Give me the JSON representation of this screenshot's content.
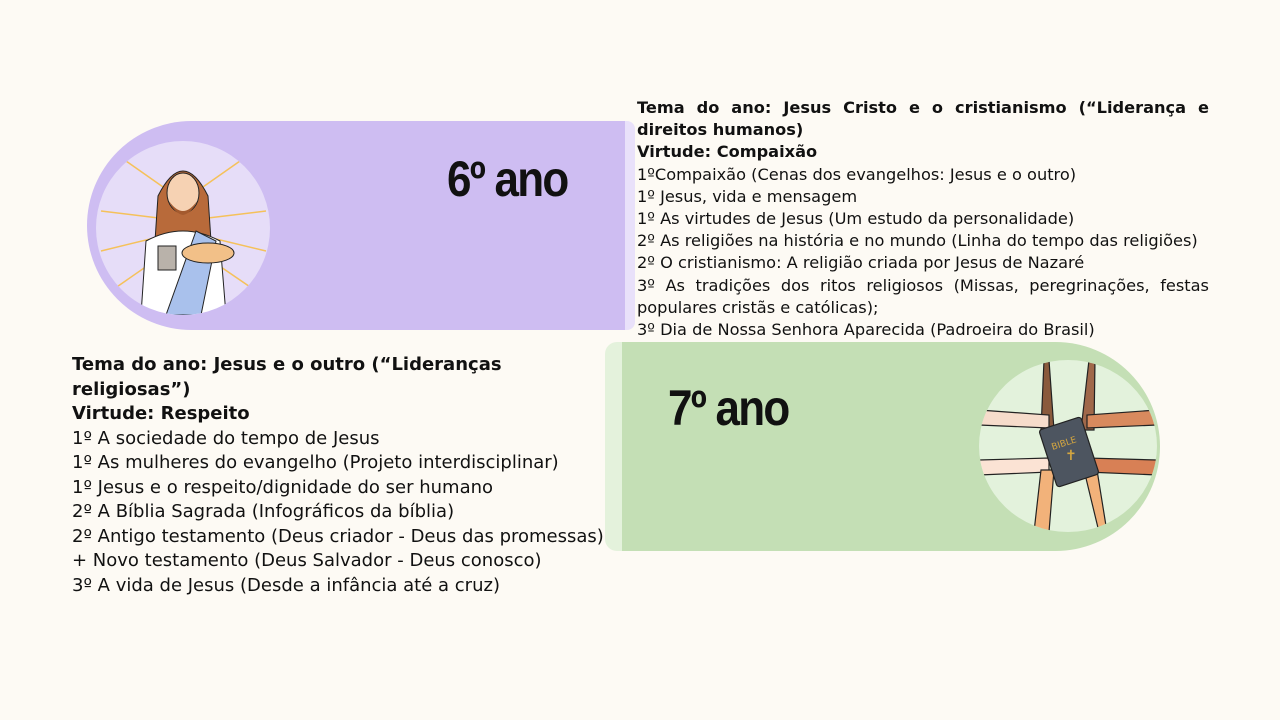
{
  "sixth": {
    "heading": "6º ano",
    "theme": "Tema do ano: Jesus Cristo e o cristianismo (“Liderança e direitos humanos)",
    "virtue": "Virtude: Compaixão",
    "items": [
      "1ºCompaixão (Cenas dos evangelhos: Jesus e o outro)",
      "1º Jesus, vida e mensagem",
      "1º As virtudes de Jesus (Um estudo da personalidade)",
      "2º As religiões na história e no mundo (Linha do tempo das religiões)",
      "2º O cristianismo: A religião criada por Jesus de Nazaré",
      "3º As tradições dos ritos religiosos (Missas, peregrinações, festas populares cristãs e católicas);",
      "3º Dia de Nossa Senhora Aparecida (Padroeira do Brasil)"
    ],
    "color": "#cebdf2"
  },
  "seventh": {
    "heading": "7º ano",
    "theme": "Tema do ano: Jesus e o outro (“Lideranças religiosas”)",
    "virtue": "Virtude: Respeito",
    "items": [
      "1º A sociedade do tempo de Jesus",
      "1º As mulheres do evangelho (Projeto interdisciplinar)",
      "1º Jesus e o respeito/dignidade do ser humano",
      "2º A Bíblia Sagrada (Infográficos da bíblia)",
      "2º Antigo testamento (Deus criador - Deus das promessas)",
      "+ Novo testamento (Deus Salvador - Deus conosco)",
      "3º A vida de Jesus (Desde a infância até a cruz)"
    ],
    "color": "#c4dfb5",
    "illustration_text": "BIBLE"
  }
}
